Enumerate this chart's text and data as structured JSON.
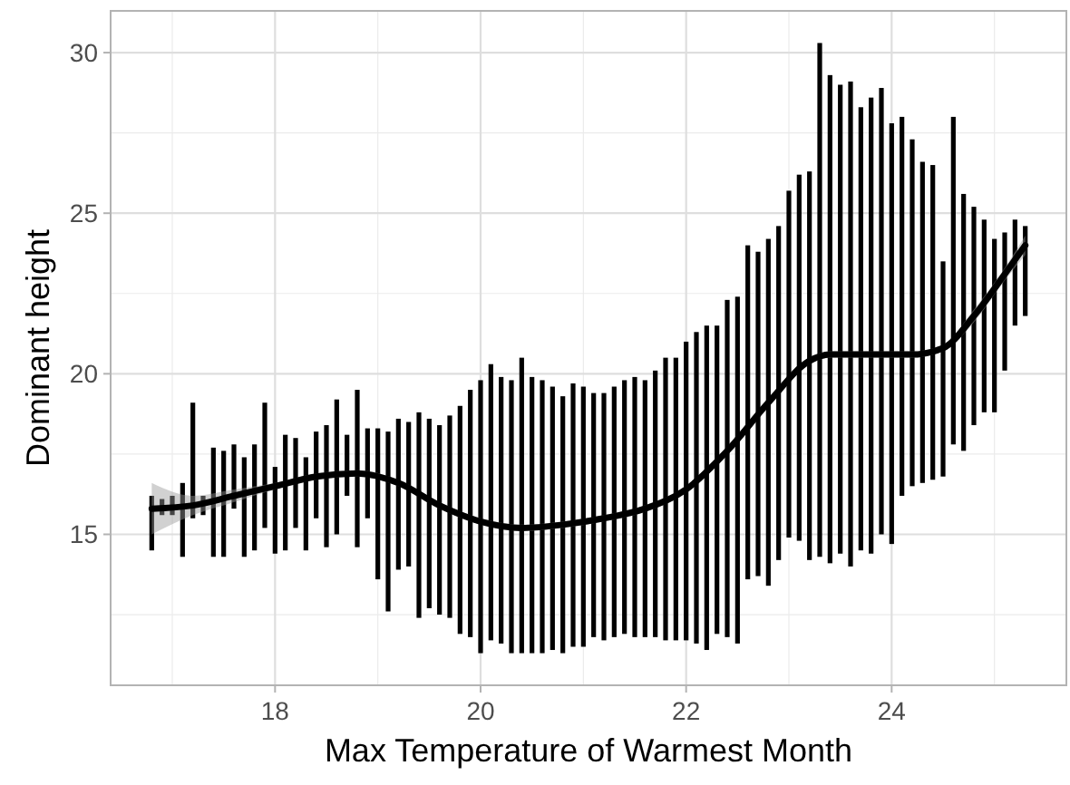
{
  "chart_data": {
    "type": "bar",
    "xlabel": "Max Temperature of Warmest Month",
    "ylabel": "Dominant height",
    "xlim": [
      16.4,
      25.7
    ],
    "ylim": [
      10.3,
      31.3
    ],
    "xticks": [
      18,
      20,
      22,
      24
    ],
    "yticks": [
      15,
      20,
      25,
      30
    ],
    "grid": true,
    "series": [
      {
        "color": "#000000",
        "x": [
          16.8,
          16.9,
          17.0,
          17.1,
          17.2,
          17.3,
          17.4,
          17.5,
          17.6,
          17.7,
          17.8,
          17.9,
          18.0,
          18.1,
          18.2,
          18.3,
          18.4,
          18.5,
          18.6,
          18.7,
          18.8,
          18.9,
          19.0,
          19.1,
          19.2,
          19.3,
          19.4,
          19.5,
          19.6,
          19.7,
          19.8,
          19.9,
          20.0,
          20.1,
          20.2,
          20.3,
          20.4,
          20.5,
          20.6,
          20.7,
          20.8,
          20.9,
          21.0,
          21.1,
          21.2,
          21.3,
          21.4,
          21.5,
          21.6,
          21.7,
          21.8,
          21.9,
          22.0,
          22.1,
          22.2,
          22.3,
          22.4,
          22.5,
          22.6,
          22.7,
          22.8,
          22.9,
          23.0,
          23.1,
          23.2,
          23.3,
          23.4,
          23.5,
          23.6,
          23.7,
          23.8,
          23.9,
          24.0,
          24.1,
          24.2,
          24.3,
          24.4,
          24.5,
          24.6,
          24.7,
          24.8,
          24.9,
          25.0,
          25.1,
          25.2,
          25.3
        ],
        "base": [
          14.5,
          15.6,
          15.6,
          14.3,
          15.5,
          15.6,
          14.3,
          14.3,
          15.8,
          14.3,
          14.5,
          15.2,
          14.4,
          14.5,
          15.2,
          14.5,
          15.5,
          14.6,
          15.0,
          16.2,
          14.6,
          15.5,
          13.6,
          12.6,
          13.9,
          14.0,
          12.4,
          12.7,
          12.5,
          12.4,
          11.9,
          11.8,
          11.3,
          11.7,
          11.6,
          11.3,
          11.3,
          11.3,
          11.3,
          11.4,
          11.3,
          11.5,
          11.5,
          11.8,
          11.7,
          11.8,
          11.9,
          11.8,
          11.8,
          11.8,
          11.7,
          11.7,
          11.7,
          11.6,
          11.4,
          11.9,
          11.8,
          11.6,
          13.6,
          13.7,
          13.4,
          14.2,
          14.9,
          14.8,
          14.2,
          14.3,
          14.1,
          14.4,
          14.0,
          14.5,
          14.4,
          15.0,
          14.7,
          16.2,
          16.5,
          16.6,
          16.7,
          16.8,
          17.8,
          17.6,
          18.4,
          18.8,
          18.8,
          20.1,
          21.5,
          21.8
        ],
        "values": [
          1.7,
          0.5,
          0.6,
          2.3,
          3.6,
          0.6,
          3.4,
          3.3,
          2.0,
          3.1,
          3.3,
          3.9,
          2.7,
          3.6,
          2.8,
          2.9,
          2.7,
          3.8,
          4.2,
          1.9,
          4.9,
          2.8,
          4.7,
          5.6,
          4.7,
          4.5,
          6.4,
          5.9,
          5.9,
          6.3,
          7.1,
          7.7,
          8.5,
          8.6,
          8.3,
          8.5,
          9.2,
          8.6,
          8.5,
          8.2,
          8.0,
          8.2,
          8.1,
          7.6,
          7.7,
          7.8,
          7.9,
          8.1,
          8.0,
          8.3,
          8.8,
          8.8,
          9.3,
          9.7,
          10.1,
          9.6,
          10.5,
          10.8,
          10.4,
          10.1,
          10.8,
          10.4,
          10.8,
          11.4,
          12.1,
          16.0,
          15.2,
          14.6,
          15.1,
          13.8,
          14.2,
          13.9,
          13.1,
          11.8,
          10.8,
          10.0,
          9.8,
          6.7,
          10.2,
          8.0,
          6.8,
          6.0,
          5.4,
          4.3,
          3.3,
          2.8
        ]
      },
      {
        "type": "line",
        "color": "#000000",
        "x": [
          16.8,
          17.2,
          17.6,
          18.0,
          18.4,
          18.8,
          19.2,
          19.6,
          20.0,
          20.4,
          20.8,
          21.2,
          21.6,
          22.0,
          22.4,
          22.8,
          23.2,
          23.4,
          23.8,
          24.2,
          24.5,
          24.8,
          25.1,
          25.3
        ],
        "values": [
          15.8,
          15.9,
          16.2,
          16.5,
          16.8,
          16.9,
          16.6,
          15.9,
          15.4,
          15.2,
          15.3,
          15.5,
          15.8,
          16.4,
          17.6,
          19.1,
          20.4,
          20.6,
          20.6,
          20.6,
          20.8,
          21.8,
          23.1,
          24.0
        ],
        "lower": [
          15.0,
          15.6,
          16.0,
          16.4,
          16.7,
          16.8,
          16.5,
          15.8,
          15.3,
          15.1,
          15.2,
          15.4,
          15.7,
          16.3,
          17.5,
          19.0,
          20.3,
          20.5,
          20.5,
          20.5,
          20.7,
          21.6,
          22.9,
          23.7
        ],
        "upper": [
          16.6,
          16.2,
          16.4,
          16.6,
          16.9,
          17.0,
          16.7,
          16.0,
          15.5,
          15.3,
          15.4,
          15.6,
          15.9,
          16.5,
          17.7,
          19.2,
          20.5,
          20.7,
          20.7,
          20.7,
          20.9,
          22.0,
          23.3,
          24.3
        ]
      }
    ]
  }
}
